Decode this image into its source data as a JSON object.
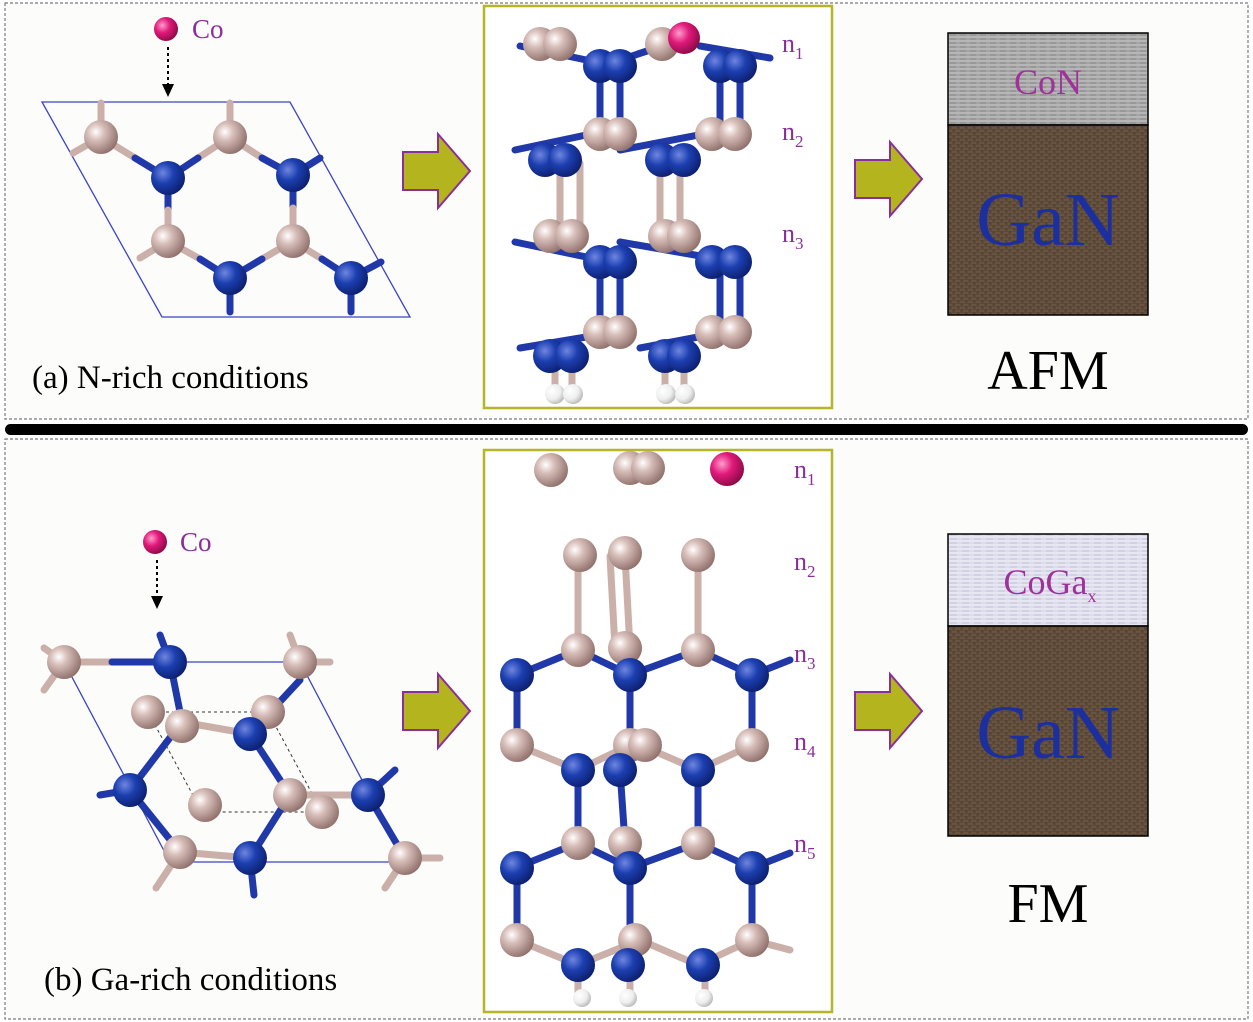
{
  "panel_a": {
    "caption": "(a) N-rich conditions",
    "dopant_label": "Co",
    "layer_labels": [
      "n",
      "1",
      "n",
      "2",
      "n",
      "3"
    ],
    "overlayer_label": "CoN",
    "substrate_label": "GaN",
    "magnetic_order": "AFM"
  },
  "panel_b": {
    "caption": "(b) Ga-rich conditions",
    "dopant_label": "Co",
    "layer_labels": [
      "n",
      "1",
      "n",
      "2",
      "n",
      "3",
      "n",
      "4",
      "n",
      "5"
    ],
    "overlayer_label": "CoGa",
    "overlayer_sub": "x",
    "substrate_label": "GaN",
    "magnetic_order": "FM"
  },
  "colors": {
    "nitrogen": "#1a3fa8",
    "gallium": "#c9aaa3",
    "cobalt": "#e0197a",
    "hydrogen": "#f4f4f4",
    "arrow_fill": "#b4b41e",
    "arrow_outline": "#8a2f9a",
    "box_outline": "#b5b52a",
    "label_purple": "#8a2f9a",
    "gan_text": "#1c2f9e"
  },
  "icons": [
    "cobalt-atom-icon",
    "down-arrow-icon",
    "right-arrow-icon"
  ]
}
